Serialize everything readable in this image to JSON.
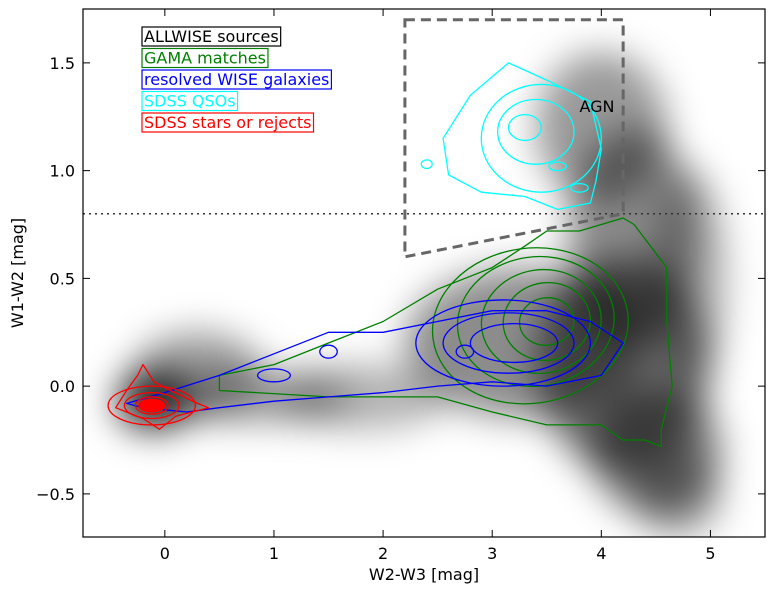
{
  "chart_data": {
    "type": "scatter",
    "xlabel": "W2-W3 [mag]",
    "ylabel": "W1-W2 [mag]",
    "xlim": [
      -0.75,
      5.5
    ],
    "ylim": [
      -0.7,
      1.75
    ],
    "xticks": [
      0,
      1,
      2,
      3,
      4,
      5
    ],
    "xtick_labels": [
      "0",
      "1",
      "2",
      "3",
      "4",
      "5"
    ],
    "yticks": [
      -0.5,
      0.0,
      0.5,
      1.0,
      1.5
    ],
    "ytick_labels": [
      "−0.5",
      "0.0",
      "0.5",
      "1.0",
      "1.5"
    ],
    "grid": false,
    "legend_placement": "top-left",
    "series": [
      {
        "name": "ALLWISE sources",
        "color": "#000000",
        "style": "grey density map"
      },
      {
        "name": "GAMA matches",
        "color": "#008000",
        "style": "contours"
      },
      {
        "name": "resolved WISE galaxies",
        "color": "#0000ff",
        "style": "contours"
      },
      {
        "name": "SDSS QSOs",
        "color": "#00ffff",
        "style": "contours"
      },
      {
        "name": "SDSS stars or rejects",
        "color": "#ff0000",
        "style": "contours"
      }
    ],
    "density_blobs": [
      {
        "cx": -0.1,
        "cy": -0.07,
        "rx": 0.35,
        "ry": 0.14,
        "a": 0.8
      },
      {
        "cx": 0.3,
        "cy": 0.05,
        "rx": 0.6,
        "ry": 0.2,
        "a": 0.4
      },
      {
        "cx": 0.9,
        "cy": -0.05,
        "rx": 0.8,
        "ry": 0.12,
        "a": 0.35
      },
      {
        "cx": 1.8,
        "cy": -0.05,
        "rx": 0.8,
        "ry": 0.15,
        "a": 0.3
      },
      {
        "cx": 3.3,
        "cy": 0.2,
        "rx": 1.1,
        "ry": 0.35,
        "a": 0.45
      },
      {
        "cx": 4.2,
        "cy": 0.1,
        "rx": 0.8,
        "ry": 0.5,
        "a": 0.55
      },
      {
        "cx": 4.5,
        "cy": -0.3,
        "rx": 0.6,
        "ry": 0.3,
        "a": 0.5
      },
      {
        "cx": 4.3,
        "cy": 0.7,
        "rx": 0.6,
        "ry": 0.5,
        "a": 0.45
      },
      {
        "cx": 4.0,
        "cy": 1.2,
        "rx": 0.6,
        "ry": 0.35,
        "a": 0.4
      },
      {
        "cx": 4.8,
        "cy": 0.5,
        "rx": 0.35,
        "ry": 0.5,
        "a": 0.3
      },
      {
        "cx": 4.7,
        "cy": -0.5,
        "rx": 0.4,
        "ry": 0.2,
        "a": 0.35
      }
    ],
    "contours": [
      {
        "color": "#008000",
        "rings": [
          {
            "cx": 3.35,
            "cy": 0.28,
            "rx": 0.9,
            "ry": 0.36,
            "rot": -8
          },
          {
            "cx": 3.4,
            "cy": 0.3,
            "rx": 0.72,
            "ry": 0.3,
            "rot": -8
          },
          {
            "cx": 3.45,
            "cy": 0.3,
            "rx": 0.55,
            "ry": 0.24,
            "rot": -8
          },
          {
            "cx": 3.5,
            "cy": 0.3,
            "rx": 0.4,
            "ry": 0.18,
            "rot": -8
          },
          {
            "cx": 3.5,
            "cy": 0.3,
            "rx": 0.25,
            "ry": 0.11,
            "rot": -8
          }
        ],
        "paths": [
          [
            [
              4.2,
              0.78
            ],
            [
              4.3,
              0.75
            ],
            [
              4.6,
              0.55
            ],
            [
              4.6,
              0.3
            ],
            [
              4.65,
              0.0
            ],
            [
              4.55,
              -0.2
            ],
            [
              4.55,
              -0.28
            ],
            [
              4.4,
              -0.25
            ],
            [
              4.2,
              -0.25
            ],
            [
              4.0,
              -0.18
            ],
            [
              3.5,
              -0.18
            ],
            [
              3.0,
              -0.12
            ],
            [
              2.5,
              -0.05
            ],
            [
              1.5,
              -0.05
            ],
            [
              0.5,
              -0.02
            ],
            [
              0.5,
              0.05
            ],
            [
              1.0,
              0.1
            ],
            [
              1.5,
              0.2
            ],
            [
              2.0,
              0.3
            ],
            [
              2.5,
              0.45
            ],
            [
              3.0,
              0.55
            ],
            [
              3.3,
              0.65
            ],
            [
              3.5,
              0.72
            ],
            [
              3.8,
              0.72
            ],
            [
              4.0,
              0.75
            ],
            [
              4.2,
              0.78
            ]
          ]
        ]
      },
      {
        "color": "#0000ff",
        "rings": [
          {
            "cx": 3.1,
            "cy": 0.2,
            "rx": 0.8,
            "ry": 0.2,
            "rot": 0
          },
          {
            "cx": 3.15,
            "cy": 0.2,
            "rx": 0.6,
            "ry": 0.14,
            "rot": 0
          },
          {
            "cx": 3.2,
            "cy": 0.2,
            "rx": 0.4,
            "ry": 0.09,
            "rot": 0
          },
          {
            "cx": 2.75,
            "cy": 0.16,
            "rx": 0.08,
            "ry": 0.03,
            "rot": 0
          },
          {
            "cx": 1.5,
            "cy": 0.16,
            "rx": 0.08,
            "ry": 0.03,
            "rot": 0
          },
          {
            "cx": 1.0,
            "cy": 0.05,
            "rx": 0.15,
            "ry": 0.03,
            "rot": 0
          }
        ],
        "paths": [
          [
            [
              -0.35,
              -0.08
            ],
            [
              0.0,
              -0.03
            ],
            [
              0.5,
              0.05
            ],
            [
              1.0,
              0.15
            ],
            [
              1.5,
              0.25
            ],
            [
              2.0,
              0.25
            ],
            [
              2.5,
              0.3
            ],
            [
              3.0,
              0.35
            ],
            [
              3.5,
              0.35
            ],
            [
              3.9,
              0.3
            ],
            [
              4.2,
              0.2
            ],
            [
              4.0,
              0.05
            ],
            [
              3.5,
              0.0
            ],
            [
              3.0,
              0.02
            ],
            [
              2.5,
              0.0
            ],
            [
              2.0,
              -0.03
            ],
            [
              1.5,
              -0.05
            ],
            [
              1.0,
              -0.07
            ],
            [
              0.5,
              -0.1
            ],
            [
              0.2,
              -0.12
            ],
            [
              -0.2,
              -0.1
            ],
            [
              -0.35,
              -0.08
            ]
          ]
        ]
      },
      {
        "color": "#00ffff",
        "rings": [
          {
            "cx": 3.45,
            "cy": 1.15,
            "rx": 0.55,
            "ry": 0.25,
            "rot": 0
          },
          {
            "cx": 3.4,
            "cy": 1.18,
            "rx": 0.35,
            "ry": 0.15,
            "rot": 0
          },
          {
            "cx": 3.3,
            "cy": 1.2,
            "rx": 0.15,
            "ry": 0.06,
            "rot": 0
          },
          {
            "cx": 3.6,
            "cy": 1.02,
            "rx": 0.08,
            "ry": 0.02,
            "rot": 0
          },
          {
            "cx": 2.4,
            "cy": 1.03,
            "rx": 0.05,
            "ry": 0.02,
            "rot": 0
          },
          {
            "cx": 3.8,
            "cy": 0.92,
            "rx": 0.08,
            "ry": 0.02,
            "rot": 0
          }
        ],
        "paths": [
          [
            [
              3.15,
              1.5
            ],
            [
              3.5,
              1.42
            ],
            [
              3.9,
              1.32
            ],
            [
              4.0,
              1.1
            ],
            [
              3.95,
              0.95
            ],
            [
              3.9,
              0.85
            ],
            [
              3.6,
              0.82
            ],
            [
              3.3,
              0.88
            ],
            [
              2.9,
              0.9
            ],
            [
              2.6,
              0.98
            ],
            [
              2.55,
              1.15
            ],
            [
              2.8,
              1.35
            ],
            [
              3.15,
              1.5
            ]
          ]
        ]
      },
      {
        "color": "#ff0000",
        "rings": [
          {
            "cx": -0.12,
            "cy": -0.09,
            "rx": 0.4,
            "ry": 0.09,
            "rot": 0
          },
          {
            "cx": -0.12,
            "cy": -0.09,
            "rx": 0.25,
            "ry": 0.06,
            "rot": 0
          },
          {
            "cx": -0.12,
            "cy": -0.09,
            "rx": 0.15,
            "ry": 0.04,
            "rot": 0
          }
        ],
        "paths": [
          [
            [
              -0.45,
              -0.1
            ],
            [
              -0.35,
              -0.02
            ],
            [
              -0.25,
              0.05
            ],
            [
              -0.2,
              0.1
            ],
            [
              -0.1,
              0.02
            ],
            [
              0.05,
              -0.02
            ],
            [
              0.3,
              -0.08
            ],
            [
              0.4,
              -0.1
            ],
            [
              0.1,
              -0.14
            ],
            [
              -0.05,
              -0.2
            ],
            [
              -0.2,
              -0.15
            ],
            [
              -0.45,
              -0.1
            ]
          ]
        ],
        "fill_rings": [
          {
            "cx": -0.12,
            "cy": -0.09,
            "rx": 0.12,
            "ry": 0.03
          }
        ]
      }
    ],
    "reference_line_y": 0.8,
    "agn_box": {
      "label": "AGN",
      "label_x": 3.8,
      "label_y": 1.3,
      "color": "#666666",
      "corners": [
        [
          2.2,
          1.7
        ],
        [
          4.2,
          1.7
        ],
        [
          4.2,
          0.8
        ],
        [
          2.2,
          0.6
        ]
      ]
    }
  }
}
